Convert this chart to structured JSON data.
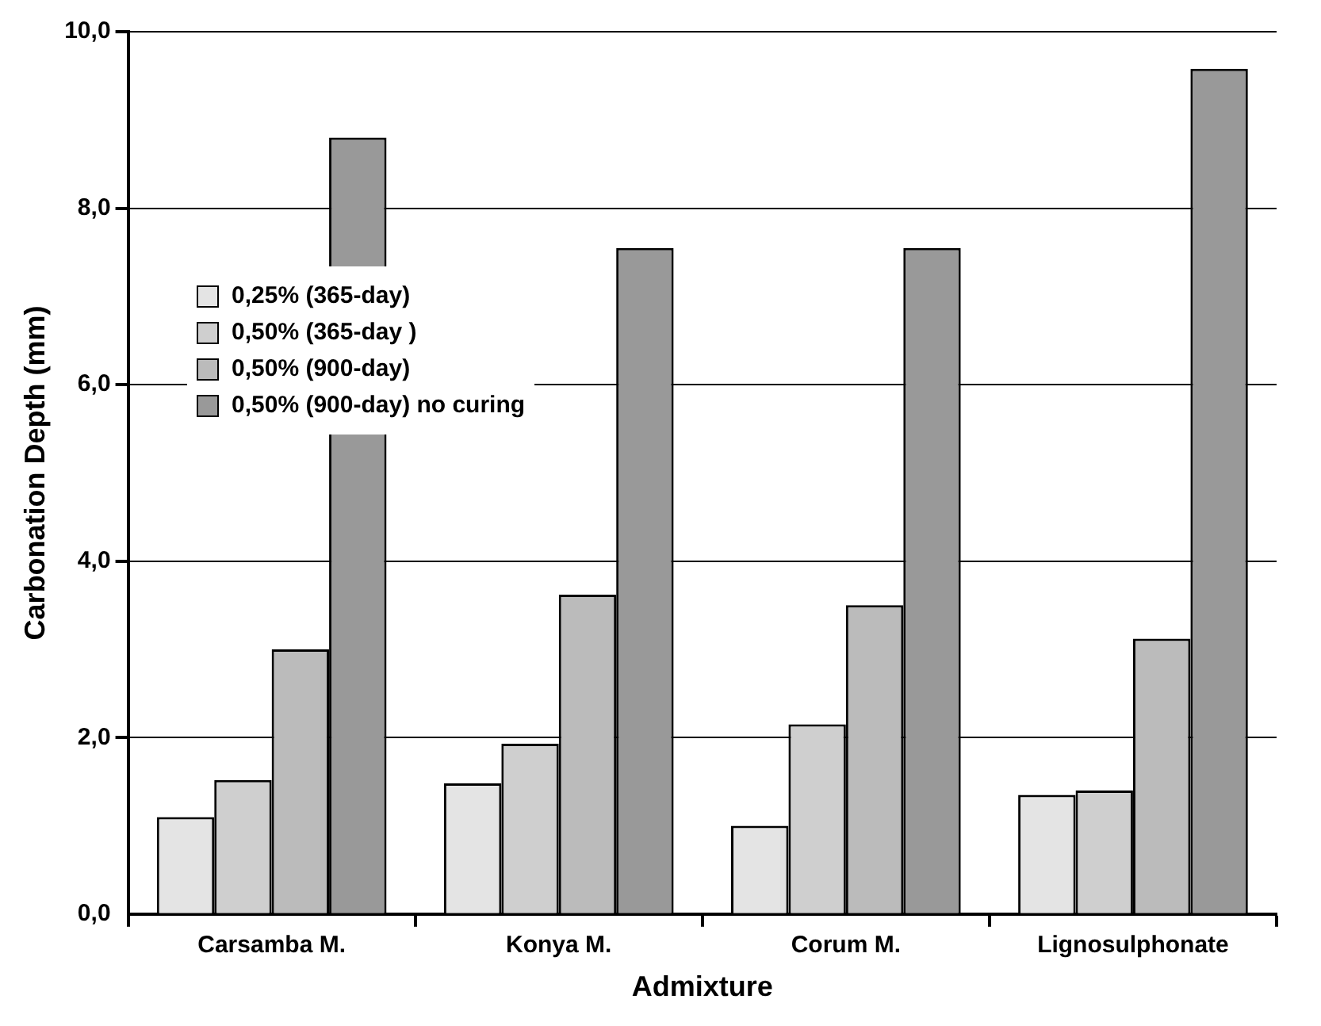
{
  "chart_data": {
    "type": "bar",
    "xlabel": "Admixture",
    "ylabel": "Carbonation Depth (mm)",
    "categories": [
      "Carsamba M.",
      "Konya M.",
      "Corum M.",
      "Lignosulphonate"
    ],
    "series": [
      {
        "name": "0,25% (365-day)",
        "color": "#e4e4e4",
        "values": [
          1.1,
          1.48,
          1.0,
          1.35
        ]
      },
      {
        "name": "0,50% (365-day )",
        "color": "#cfcfcf",
        "values": [
          1.52,
          1.93,
          2.15,
          1.4
        ]
      },
      {
        "name": "0,50% (900-day)",
        "color": "#bbbbbb",
        "values": [
          3.0,
          3.62,
          3.5,
          3.12
        ]
      },
      {
        "name": "0,50% (900-day) no curing",
        "color": "#999999",
        "values": [
          8.8,
          7.55,
          7.55,
          9.58
        ]
      }
    ],
    "ylim": [
      0,
      10
    ],
    "yticks": [
      {
        "value": 0,
        "label": "0,0"
      },
      {
        "value": 2,
        "label": "2,0"
      },
      {
        "value": 4,
        "label": "4,0"
      },
      {
        "value": 6,
        "label": "6,0"
      },
      {
        "value": 8,
        "label": "8,0"
      },
      {
        "value": 10,
        "label": "10,0"
      }
    ],
    "grid": "y",
    "legend": "top left"
  }
}
